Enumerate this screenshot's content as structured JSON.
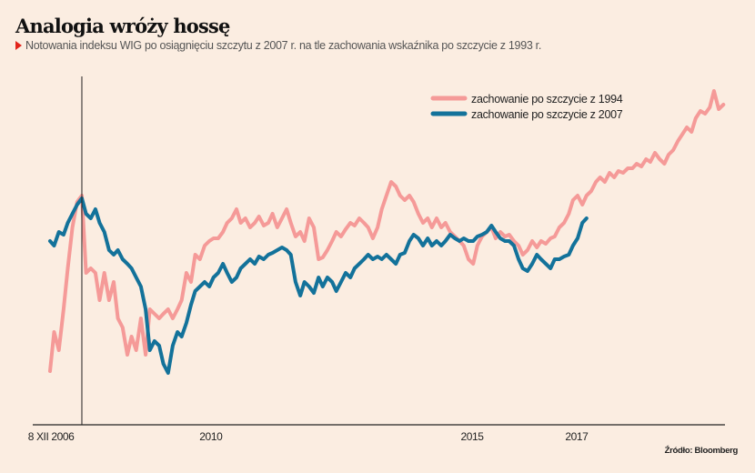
{
  "header": {
    "title": "Analogia wróży hossę",
    "subtitle": "Notowania indeksu WIG po osiągnięciu szczytu z 2007 r. na tle zachowania wskaźnika po szczycie z 1993 r."
  },
  "source": "Źródło: Bloomberg",
  "colors": {
    "background": "#fbede1",
    "series_1994": "#f59a98",
    "series_2007": "#13729a",
    "accent_triangle": "#e2231a"
  },
  "chart_data": {
    "type": "line",
    "title": "",
    "xlabel": "",
    "ylabel": "",
    "xlim": [
      2006.59,
      2019.84
    ],
    "ylim": [
      0,
      383
    ],
    "y_axis_shown": false,
    "grid": false,
    "legend_position": "top-right",
    "x_ticks": [
      {
        "value": 2006.94,
        "label": "8 XII 2006"
      },
      {
        "value": 2010,
        "label": "2010"
      },
      {
        "value": 2015,
        "label": "2015"
      },
      {
        "value": 2017,
        "label": "2017"
      }
    ],
    "reference_line_x": 2007.53,
    "x": [
      2006.92,
      2007.0,
      2007.09,
      2007.18,
      2007.26,
      2007.35,
      2007.44,
      2007.53,
      2007.61,
      2007.7,
      2007.79,
      2007.87,
      2007.96,
      2008.05,
      2008.14,
      2008.22,
      2008.31,
      2008.4,
      2008.48,
      2008.57,
      2008.66,
      2008.75,
      2008.83,
      2008.92,
      2009.01,
      2009.09,
      2009.18,
      2009.27,
      2009.36,
      2009.44,
      2009.53,
      2009.62,
      2009.7,
      2009.79,
      2009.88,
      2009.97,
      2010.05,
      2010.14,
      2010.23,
      2010.31,
      2010.4,
      2010.49,
      2010.57,
      2010.66,
      2010.75,
      2010.84,
      2010.92,
      2011.01,
      2011.1,
      2011.18,
      2011.27,
      2011.36,
      2011.45,
      2011.53,
      2011.62,
      2011.71,
      2011.79,
      2011.88,
      2011.97,
      2012.06,
      2012.14,
      2012.23,
      2012.32,
      2012.4,
      2012.49,
      2012.58,
      2012.67,
      2012.75,
      2012.84,
      2012.93,
      2013.01,
      2013.1,
      2013.19,
      2013.27,
      2013.36,
      2013.45,
      2013.54,
      2013.62,
      2013.71,
      2013.8,
      2013.88,
      2013.97,
      2014.06,
      2014.15,
      2014.23,
      2014.32,
      2014.41,
      2014.49,
      2014.58,
      2014.67,
      2014.76,
      2014.84,
      2014.93,
      2015.02,
      2015.1,
      2015.19,
      2015.28,
      2015.37,
      2015.45,
      2015.54,
      2015.63,
      2015.71,
      2015.8,
      2015.89,
      2015.97,
      2016.06,
      2016.15,
      2016.24,
      2016.32,
      2016.41,
      2016.5,
      2016.58,
      2016.67,
      2016.76,
      2016.85,
      2016.93,
      2017.02,
      2017.11,
      2017.19,
      2017.28,
      2017.37,
      2017.45,
      2017.54,
      2017.63,
      2017.72,
      2017.8,
      2017.89,
      2017.98,
      2018.07,
      2018.15,
      2018.24,
      2018.33,
      2018.41,
      2018.5,
      2018.59,
      2018.68,
      2018.76,
      2018.85,
      2018.94,
      2019.02,
      2019.11,
      2019.2,
      2019.28,
      2019.37,
      2019.46,
      2019.55,
      2019.63,
      2019.72,
      2019.81
    ],
    "series": [
      {
        "name": "zachowanie po szczycie z 1994",
        "color": "#f59a98",
        "values": [
          59,
          102,
          82,
          127,
          172,
          217,
          245,
          252,
          167,
          172,
          167,
          137,
          167,
          137,
          157,
          117,
          107,
          77,
          97,
          82,
          117,
          77,
          127,
          122,
          117,
          122,
          127,
          117,
          127,
          137,
          167,
          157,
          187,
          182,
          197,
          202,
          205,
          205,
          212,
          222,
          227,
          237,
          222,
          227,
          217,
          222,
          229,
          219,
          222,
          232,
          217,
          227,
          237,
          222,
          207,
          212,
          202,
          227,
          217,
          182,
          184,
          192,
          202,
          212,
          207,
          215,
          222,
          219,
          227,
          222,
          217,
          205,
          217,
          237,
          252,
          267,
          262,
          252,
          247,
          252,
          245,
          232,
          222,
          227,
          217,
          227,
          217,
          222,
          212,
          207,
          202,
          197,
          182,
          177,
          197,
          207,
          212,
          217,
          205,
          212,
          207,
          209,
          202,
          197,
          187,
          192,
          202,
          195,
          202,
          199,
          205,
          207,
          217,
          222,
          232,
          247,
          252,
          242,
          252,
          257,
          267,
          272,
          267,
          277,
          272,
          279,
          277,
          282,
          282,
          287,
          284,
          292,
          289,
          299,
          292,
          287,
          297,
          302,
          312,
          319,
          327,
          322,
          337,
          345,
          342,
          349,
          367,
          347,
          352
        ]
      },
      {
        "name": "zachowanie po szczycie z 2007",
        "color": "#13729a",
        "values": [
          202,
          197,
          212,
          209,
          222,
          232,
          242,
          249,
          232,
          227,
          237,
          222,
          212,
          192,
          187,
          192,
          182,
          177,
          172,
          162,
          152,
          127,
          82,
          92,
          87,
          67,
          57,
          87,
          102,
          97,
          112,
          132,
          147,
          152,
          157,
          152,
          162,
          167,
          177,
          167,
          157,
          162,
          172,
          177,
          182,
          177,
          185,
          182,
          187,
          189,
          192,
          195,
          192,
          187,
          157,
          142,
          157,
          152,
          145,
          162,
          152,
          162,
          157,
          147,
          157,
          167,
          162,
          172,
          177,
          182,
          187,
          182,
          185,
          182,
          187,
          182,
          177,
          187,
          189,
          202,
          209,
          205,
          197,
          205,
          197,
          202,
          197,
          202,
          209,
          205,
          202,
          205,
          202,
          202,
          207,
          209,
          212,
          219,
          212,
          205,
          202,
          202,
          197,
          182,
          172,
          169,
          177,
          187,
          182,
          177,
          172,
          182,
          182,
          185,
          187,
          197,
          205,
          222,
          227,
          null,
          null,
          null,
          null,
          null,
          null,
          null,
          null,
          null,
          null,
          null,
          null,
          null,
          null,
          null,
          null,
          null,
          null,
          null,
          null,
          null,
          null,
          null,
          null,
          null,
          null,
          null,
          null,
          null,
          null
        ]
      }
    ]
  }
}
